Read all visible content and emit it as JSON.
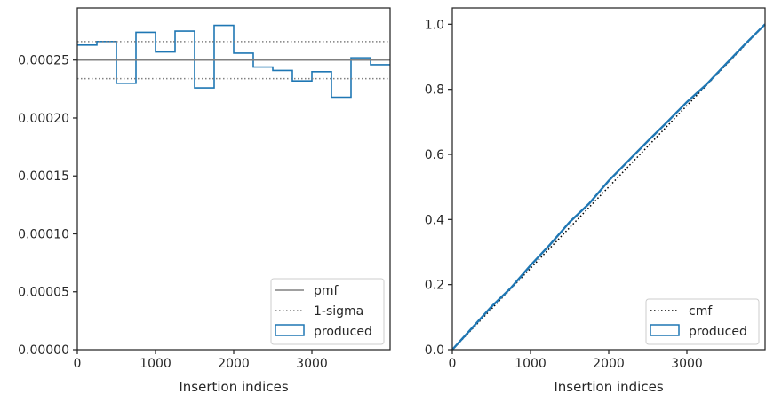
{
  "chart_data": [
    {
      "type": "histogram-step",
      "xlabel": "Insertion indices",
      "ylabel": "",
      "xlim": [
        0,
        4000
      ],
      "ylim": [
        0,
        0.000295
      ],
      "xticks": [
        0,
        1000,
        2000,
        3000
      ],
      "xtick_labels": [
        "0",
        "1000",
        "2000",
        "3000"
      ],
      "yticks": [
        0,
        5e-05,
        0.0001,
        0.00015,
        0.0002,
        0.00025
      ],
      "ytick_labels": [
        "0.00000",
        "0.00005",
        "0.00010",
        "0.00015",
        "0.00020",
        "0.00025"
      ],
      "legend_position": "bottom-right",
      "legend": [
        "pmf",
        "1-sigma",
        "produced"
      ],
      "series": [
        {
          "name": "produced",
          "style": "step",
          "color": "#1f77b4",
          "bin_edges": [
            0,
            250,
            500,
            750,
            1000,
            1250,
            1500,
            1750,
            2000,
            2250,
            2500,
            2750,
            3000,
            3250,
            3500,
            3750,
            4000
          ],
          "values": [
            0.000263,
            0.000266,
            0.00023,
            0.000274,
            0.000257,
            0.000275,
            0.000226,
            0.00028,
            0.000256,
            0.000244,
            0.000241,
            0.000232,
            0.00024,
            0.000218,
            0.000252,
            0.000246
          ]
        },
        {
          "name": "pmf",
          "style": "solid",
          "color": "#808080",
          "y": 0.00025
        },
        {
          "name": "1-sigma",
          "style": "dotted",
          "color": "#808080",
          "y": [
            0.000234,
            0.000266
          ]
        }
      ]
    },
    {
      "type": "line",
      "xlabel": "Insertion indices",
      "ylabel": "",
      "xlim": [
        0,
        4000
      ],
      "ylim": [
        0,
        1.05
      ],
      "xticks": [
        0,
        1000,
        2000,
        3000
      ],
      "xtick_labels": [
        "0",
        "1000",
        "2000",
        "3000"
      ],
      "yticks": [
        0,
        0.2,
        0.4,
        0.6,
        0.8,
        1.0
      ],
      "ytick_labels": [
        "0.0",
        "0.2",
        "0.4",
        "0.6",
        "0.8",
        "1.0"
      ],
      "legend_position": "bottom-right",
      "legend": [
        "cmf",
        "produced"
      ],
      "series": [
        {
          "name": "cmf",
          "style": "dotted",
          "color": "#000000",
          "x": [
            0,
            4000
          ],
          "y": [
            0,
            1.0
          ]
        },
        {
          "name": "produced",
          "style": "solid",
          "color": "#1f77b4",
          "x": [
            0,
            250,
            500,
            750,
            1000,
            1250,
            1500,
            1750,
            2000,
            2250,
            2500,
            2750,
            3000,
            3250,
            3500,
            3750,
            4000
          ],
          "y": [
            0,
            0.066,
            0.132,
            0.19,
            0.259,
            0.323,
            0.392,
            0.449,
            0.519,
            0.58,
            0.641,
            0.7,
            0.761,
            0.815,
            0.878,
            0.94,
            1.0
          ]
        }
      ]
    }
  ]
}
